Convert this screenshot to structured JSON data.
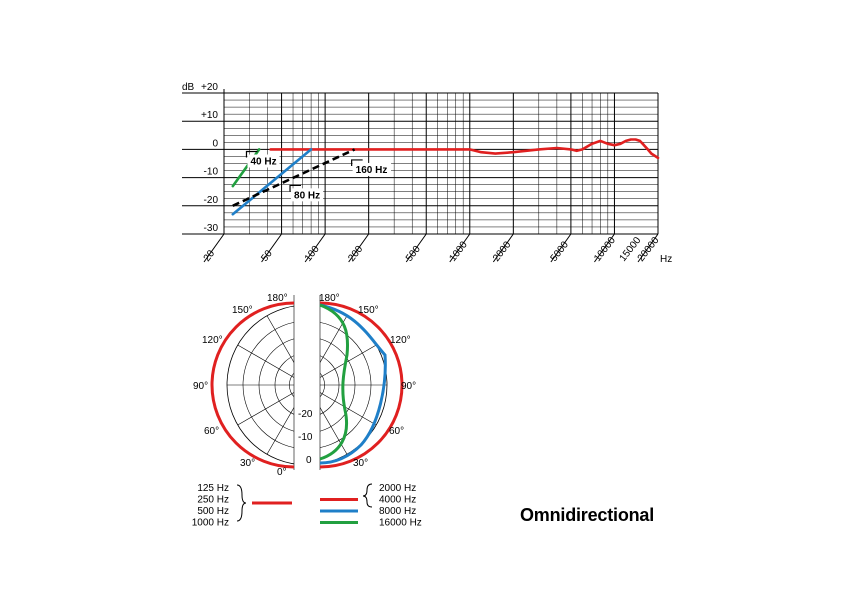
{
  "chart_data": [
    {
      "type": "line",
      "name": "frequency-response",
      "xscale": "log",
      "xlim": [
        20,
        20000
      ],
      "ylim": [
        -30,
        20
      ],
      "y_unit_label": "dB",
      "x_unit_label": "Hz",
      "x_ticks": [
        "20",
        "50",
        "100",
        "200",
        "500",
        "1000",
        "2000",
        "5000",
        "10000",
        "15000",
        "20000"
      ],
      "y_ticks": [
        "+20",
        "+10",
        "0",
        "-10",
        "-20",
        "-30"
      ],
      "grid": true,
      "series": [
        {
          "color": "#e02020",
          "x": [
            42,
            60,
            100,
            200,
            500,
            1000,
            1200,
            1500,
            2000,
            3000,
            4000,
            5000,
            5500,
            6000,
            7000,
            8000,
            9000,
            10000,
            11000,
            12000,
            13000,
            14000,
            15000,
            16000,
            17000,
            18000,
            20000
          ],
          "y": [
            0,
            0,
            0,
            0,
            0,
            0,
            -1,
            -1.5,
            -1,
            0,
            0.5,
            0,
            -0.5,
            0,
            2,
            3,
            2,
            1.5,
            2,
            3,
            3.5,
            3.5,
            3,
            1.5,
            0,
            -1.5,
            -3
          ]
        },
        {
          "color": "#1f7fc8",
          "x": [
            23,
            80
          ],
          "y": [
            -23,
            0
          ]
        },
        {
          "color": "#22a040",
          "x": [
            23,
            35
          ],
          "y": [
            -13,
            0
          ]
        },
        {
          "color": "#000000",
          "dashed": true,
          "x": [
            23,
            160
          ],
          "y": [
            -20,
            0
          ]
        }
      ],
      "annotations": [
        {
          "text": "40 Hz",
          "x": 30,
          "y": -5
        },
        {
          "text": "80 Hz",
          "x": 60,
          "y": -17
        },
        {
          "text": "160 Hz",
          "x": 160,
          "y": -8
        }
      ]
    },
    {
      "type": "polar",
      "name": "polar-pattern",
      "r_ticks": [
        "-20",
        "-10",
        "0"
      ],
      "angle_labels": [
        "180°",
        "150°",
        "120°",
        "90°",
        "60°",
        "30°",
        "0°"
      ],
      "left_half": {
        "label_frequencies": [
          "125 Hz",
          "250 Hz",
          "500 Hz",
          "1000 Hz"
        ],
        "color": "#e02020",
        "dB": "0 at all angles"
      },
      "right_half": {
        "series": [
          {
            "label": "2000 Hz",
            "color": "#e02020"
          },
          {
            "label": "4000 Hz",
            "color": "#e02020"
          },
          {
            "label": "8000 Hz",
            "color": "#1f7fc8"
          },
          {
            "label": "16000 Hz",
            "color": "#22a040"
          }
        ]
      }
    }
  ],
  "legend": {
    "left": [
      "125 Hz",
      "250 Hz",
      "500 Hz",
      "1000 Hz"
    ],
    "right": [
      "2000 Hz",
      "4000 Hz",
      "8000 Hz",
      "16000 Hz"
    ]
  },
  "caption": "Omnidirectional"
}
